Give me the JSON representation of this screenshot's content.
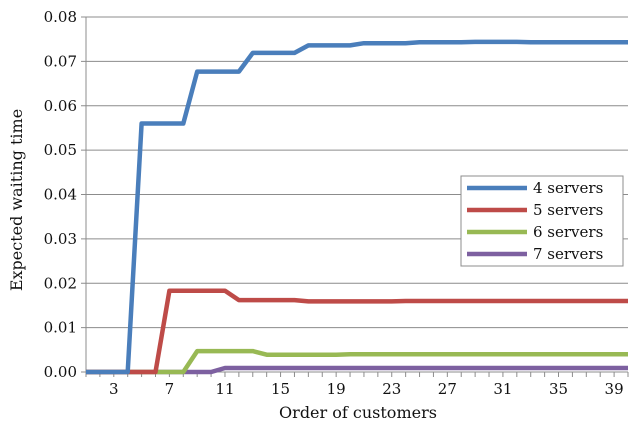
{
  "chart_data": {
    "type": "line",
    "title": "",
    "xlabel": "Order of customers",
    "ylabel": "Expected waiting time",
    "xlim": [
      1,
      40
    ],
    "ylim": [
      0,
      0.08
    ],
    "x_ticks": [
      3,
      7,
      11,
      15,
      19,
      23,
      27,
      31,
      35,
      39
    ],
    "x_tick_labels": [
      "3",
      "7",
      "11",
      "15",
      "19",
      "23",
      "27",
      "31",
      "35",
      "39"
    ],
    "y_ticks": [
      0,
      0.01,
      0.02,
      0.03,
      0.04,
      0.05,
      0.06,
      0.07,
      0.08
    ],
    "y_tick_labels": [
      "0.00",
      "0.01",
      "0.02",
      "0.03",
      "0.04",
      "0.05",
      "0.06",
      "0.07",
      "0.08"
    ],
    "grid": {
      "horizontal": true,
      "vertical": false
    },
    "legend_position": "right-middle",
    "x": [
      1,
      2,
      3,
      4,
      5,
      6,
      7,
      8,
      9,
      10,
      11,
      12,
      13,
      14,
      15,
      16,
      17,
      18,
      19,
      20,
      21,
      22,
      23,
      24,
      25,
      26,
      27,
      28,
      29,
      30,
      31,
      32,
      33,
      34,
      35,
      36,
      37,
      38,
      39,
      40
    ],
    "series": [
      {
        "name": "4 servers",
        "color": "#4a7ebb",
        "values": [
          0,
          0,
          0,
          0,
          0.056,
          0.056,
          0.056,
          0.056,
          0.0677,
          0.0677,
          0.0677,
          0.0677,
          0.0719,
          0.0719,
          0.0719,
          0.0719,
          0.0736,
          0.0736,
          0.0736,
          0.0736,
          0.0741,
          0.0741,
          0.0741,
          0.0741,
          0.0743,
          0.0743,
          0.0743,
          0.0743,
          0.0744,
          0.0744,
          0.0744,
          0.0744,
          0.0743,
          0.0743,
          0.0743,
          0.0743,
          0.0743,
          0.0743,
          0.0743,
          0.0743
        ]
      },
      {
        "name": "5 servers",
        "color": "#be4b48",
        "values": [
          0,
          0,
          0,
          0,
          0,
          0,
          0.0183,
          0.0183,
          0.0183,
          0.0183,
          0.0183,
          0.0162,
          0.0162,
          0.0162,
          0.0162,
          0.0162,
          0.0159,
          0.0159,
          0.0159,
          0.0159,
          0.0159,
          0.0159,
          0.0159,
          0.016,
          0.016,
          0.016,
          0.016,
          0.016,
          0.016,
          0.016,
          0.016,
          0.016,
          0.016,
          0.016,
          0.016,
          0.016,
          0.016,
          0.016,
          0.016,
          0.016
        ]
      },
      {
        "name": "6 servers",
        "color": "#98b954",
        "values": [
          0,
          0,
          0,
          0,
          0,
          0,
          0,
          0,
          0.0047,
          0.0047,
          0.0047,
          0.0047,
          0.0047,
          0.0039,
          0.0039,
          0.0039,
          0.0039,
          0.0039,
          0.0039,
          0.004,
          0.004,
          0.004,
          0.004,
          0.004,
          0.004,
          0.004,
          0.004,
          0.004,
          0.004,
          0.004,
          0.004,
          0.004,
          0.004,
          0.004,
          0.004,
          0.004,
          0.004,
          0.004,
          0.004,
          0.004
        ]
      },
      {
        "name": "7 servers",
        "color": "#7d60a0",
        "values": [
          0,
          0,
          0,
          0,
          0,
          0,
          0,
          0,
          0,
          0,
          0.0009,
          0.0009,
          0.0009,
          0.0009,
          0.0009,
          0.0009,
          0.0009,
          0.0009,
          0.0009,
          0.0009,
          0.0009,
          0.0009,
          0.0009,
          0.0009,
          0.0009,
          0.0009,
          0.0009,
          0.0009,
          0.0009,
          0.0009,
          0.0009,
          0.0009,
          0.0009,
          0.0009,
          0.0009,
          0.0009,
          0.0009,
          0.0009,
          0.0009,
          0.0009
        ]
      }
    ]
  }
}
